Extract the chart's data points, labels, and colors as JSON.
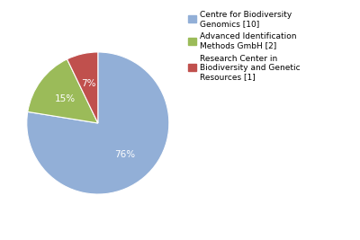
{
  "labels": [
    "Centre for Biodiversity\nGenomics [10]",
    "Advanced Identification\nMethods GmbH [2]",
    "Research Center in\nBiodiversity and Genetic\nResources [1]"
  ],
  "values": [
    76,
    15,
    7
  ],
  "colors": [
    "#92afd7",
    "#9bbb59",
    "#c0504d"
  ],
  "pct_labels": [
    "76%",
    "15%",
    "7%"
  ],
  "background_color": "#ffffff",
  "text_color": "#ffffff",
  "startangle": 90
}
